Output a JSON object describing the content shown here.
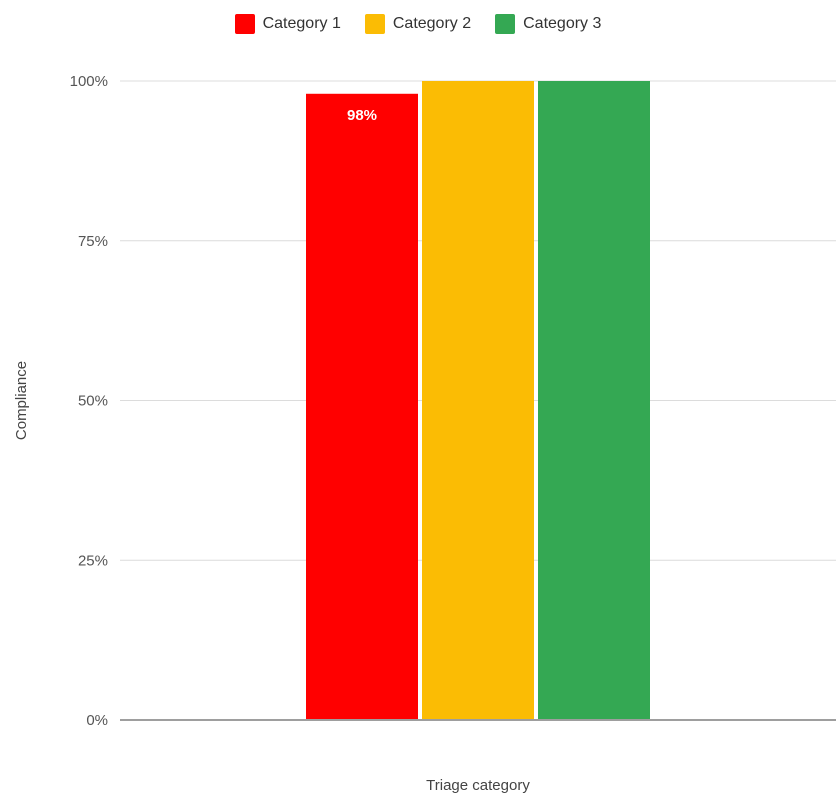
{
  "chart_data": {
    "type": "bar",
    "title": "",
    "xlabel": "Triage category",
    "ylabel": "Compliance",
    "categories": [
      ""
    ],
    "series": [
      {
        "name": "Category 1",
        "color": "#ff0000",
        "values": [
          98
        ],
        "data_label": "98%"
      },
      {
        "name": "Category 2",
        "color": "#fbbc04",
        "values": [
          100
        ],
        "data_label": ""
      },
      {
        "name": "Category 3",
        "color": "#34a853",
        "values": [
          100
        ],
        "data_label": ""
      }
    ],
    "ylim": [
      0,
      100
    ],
    "yticks": [
      0,
      25,
      50,
      75,
      100
    ],
    "ytick_labels": [
      "0%",
      "25%",
      "50%",
      "75%",
      "100%"
    ],
    "grid": true,
    "legend_position": "top-center"
  }
}
